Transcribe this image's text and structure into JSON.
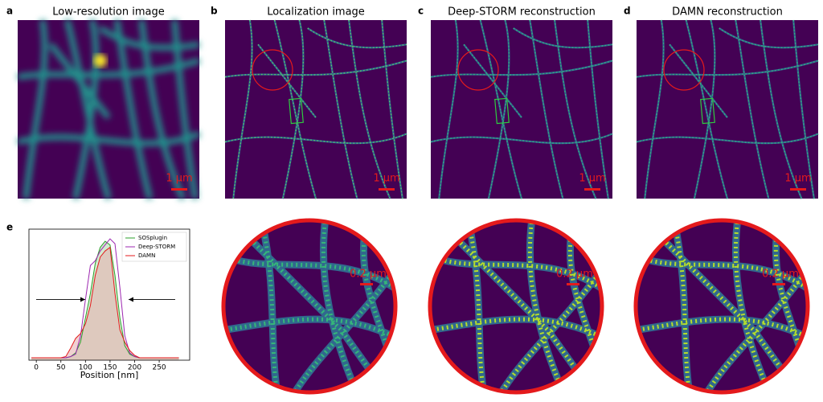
{
  "panels": [
    {
      "label": "a",
      "title": "Low-resolution image",
      "scale_bar": "1 µm"
    },
    {
      "label": "b",
      "title": "Localization image",
      "scale_bar": "1 µm"
    },
    {
      "label": "c",
      "title": "Deep-STORM reconstruction",
      "scale_bar": "1 µm"
    },
    {
      "label": "d",
      "title": "DAMN reconstruction",
      "scale_bar": "1 µm"
    }
  ],
  "zooms": [
    {
      "scale_bar": "0.2 µm"
    },
    {
      "scale_bar": "0.2 µm"
    },
    {
      "scale_bar": "0.2 µm"
    }
  ],
  "chart_data": {
    "type": "line",
    "label": "e",
    "xlabel": "Position [nm]",
    "x": [
      -10,
      0,
      10,
      20,
      30,
      40,
      50,
      60,
      70,
      80,
      90,
      100,
      110,
      120,
      130,
      140,
      150,
      160,
      170,
      180,
      190,
      200,
      210,
      220,
      230,
      240,
      250,
      260,
      270,
      280,
      290
    ],
    "series": [
      {
        "name": "SOSplugin",
        "color": "#2ca02c",
        "fill": "#b5dcb0",
        "values": [
          0.02,
          0.02,
          0.02,
          0.02,
          0.02,
          0.02,
          0.02,
          0.02,
          0.03,
          0.06,
          0.15,
          0.35,
          0.55,
          0.8,
          0.93,
          0.98,
          0.95,
          0.7,
          0.35,
          0.12,
          0.05,
          0.03,
          0.02,
          0.02,
          0.02,
          0.02,
          0.02,
          0.02,
          0.02,
          0.02,
          0.02
        ]
      },
      {
        "name": "Deep-STORM",
        "color": "#9c27b0",
        "fill": null,
        "values": [
          0.02,
          0.02,
          0.02,
          0.02,
          0.02,
          0.02,
          0.02,
          0.02,
          0.03,
          0.05,
          0.2,
          0.5,
          0.78,
          0.82,
          0.9,
          0.95,
          1.0,
          0.96,
          0.6,
          0.2,
          0.06,
          0.03,
          0.02,
          0.02,
          0.02,
          0.02,
          0.02,
          0.02,
          0.02,
          0.02,
          0.02
        ]
      },
      {
        "name": "DAMN",
        "color": "#e41a1c",
        "fill": "#e6b3b3",
        "values": [
          0.02,
          0.02,
          0.02,
          0.02,
          0.02,
          0.02,
          0.02,
          0.03,
          0.1,
          0.18,
          0.22,
          0.3,
          0.45,
          0.7,
          0.85,
          0.9,
          0.93,
          0.55,
          0.25,
          0.15,
          0.08,
          0.04,
          0.02,
          0.02,
          0.02,
          0.02,
          0.02,
          0.02,
          0.02,
          0.02,
          0.02
        ]
      }
    ],
    "xlim": [
      -15,
      312
    ],
    "ylim": [
      0,
      1.08
    ],
    "xticks": [
      0,
      50,
      100,
      150,
      200,
      250
    ],
    "legend": "upper right"
  }
}
